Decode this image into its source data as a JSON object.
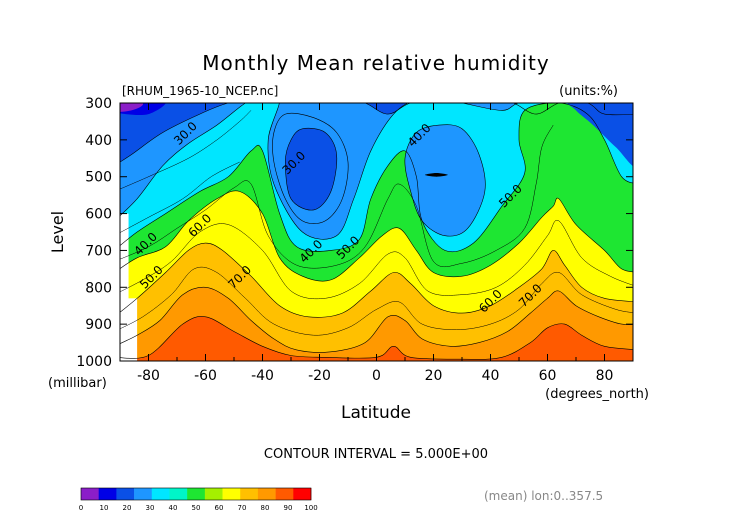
{
  "chart_data": {
    "type": "contour",
    "title": "Monthly Mean relative humidity",
    "source_file": "[RHUM_1965-10_NCEP.nc]",
    "units": "(units:%)",
    "ylabel": "Level",
    "ylabel_units": "(millibar)",
    "xlabel": "Latitude",
    "xlabel_units": "(degrees_north)",
    "x_ticks": [
      "-80",
      "-60",
      "-40",
      "-20",
      "0",
      "20",
      "40",
      "60",
      "80"
    ],
    "x_tick_values": [
      -80,
      -60,
      -40,
      -20,
      0,
      20,
      40,
      60,
      80
    ],
    "xlim": [
      -90,
      90
    ],
    "y_ticks": [
      "300",
      "400",
      "500",
      "600",
      "700",
      "800",
      "900",
      "1000"
    ],
    "y_tick_values": [
      300,
      400,
      500,
      600,
      700,
      800,
      900,
      1000
    ],
    "ylim": [
      300,
      1000
    ],
    "contour_interval_text": "CONTOUR INTERVAL = 5.000E+00",
    "footnote": "(mean) lon:0..357.5",
    "contour_labels": [
      {
        "text": "30.0",
        "lat": -66,
        "lev": 390
      },
      {
        "text": "30.0",
        "lat": -28,
        "lev": 470
      },
      {
        "text": "40.0",
        "lat": 16,
        "lev": 395
      },
      {
        "text": "50.0",
        "lat": 48,
        "lev": 560
      },
      {
        "text": "40.0",
        "lat": -80,
        "lev": 690
      },
      {
        "text": "60.0",
        "lat": -61,
        "lev": 640
      },
      {
        "text": "40.0",
        "lat": -22,
        "lev": 710
      },
      {
        "text": "50.0",
        "lat": -9,
        "lev": 700
      },
      {
        "text": "50.0",
        "lat": -78,
        "lev": 780
      },
      {
        "text": "70.0",
        "lat": -47,
        "lev": 780
      },
      {
        "text": "60.0",
        "lat": 41,
        "lev": 845
      },
      {
        "text": "70.0",
        "lat": 55,
        "lev": 830
      }
    ],
    "colorbar": {
      "ticks": [
        "0",
        "10",
        "20",
        "30",
        "40",
        "50",
        "60",
        "70",
        "80",
        "90",
        "100"
      ],
      "colors": [
        "#8b1ec8",
        "#0000e6",
        "#0a50e6",
        "#1e96ff",
        "#00e6ff",
        "#00f5c8",
        "#1ee632",
        "#a5f000",
        "#ffff00",
        "#ffc000",
        "#ff9900",
        "#ff5a00",
        "#ff0000"
      ]
    },
    "fill_colors": {
      "lt30": "#0a50e6",
      "30_40": "#1e96ff",
      "40_50": "#00e6ff",
      "50_60": "#1ee632",
      "60_70": "#ffff00",
      "70_80": "#ffc000",
      "80_90": "#ff9900",
      "gt90": "#ff5a00",
      "min": "#8b1ec8",
      "very_low": "#0000e6"
    }
  }
}
